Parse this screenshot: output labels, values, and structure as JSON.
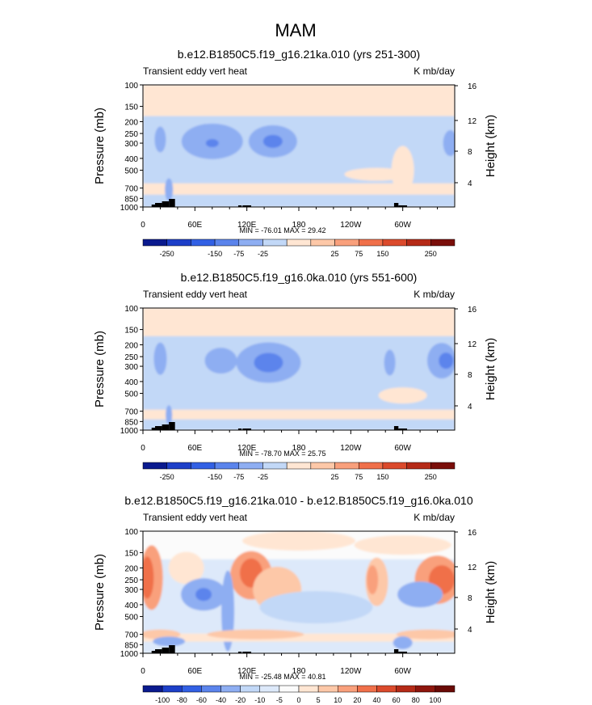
{
  "figure": {
    "title": "MAM"
  },
  "chart_data": [
    {
      "type": "heatmap",
      "title": "b.e12.B1850C5.f19_g16.21ka.010 (yrs 251-300)",
      "left_label": "Transient eddy vert heat",
      "right_label": "K mb/day",
      "ylabel": "Pressure (mb)",
      "ylabel_right": "Height (km)",
      "x_ticks": [
        "0",
        "60E",
        "120E",
        "180",
        "120W",
        "60W"
      ],
      "y_ticks": [
        "100",
        "150",
        "200",
        "250",
        "300",
        "400",
        "500",
        "700",
        "850",
        "1000"
      ],
      "height_ticks": [
        "16",
        "12",
        "8",
        "4"
      ],
      "stats": "MIN = -76.01  MAX =  29.42",
      "legend_labels": [
        "-250",
        "-150",
        "-75",
        "-25",
        "25",
        "75",
        "150",
        "250"
      ],
      "legend_colors": [
        "#0a1a8e",
        "#1d3fc8",
        "#3260e4",
        "#5b84ec",
        "#8eaef2",
        "#c2d8f7",
        "#ffe6d3",
        "#fdc8a8",
        "#f9a07c",
        "#f0704a",
        "#db4a2c",
        "#b52a17",
        "#7a0e0a"
      ]
    },
    {
      "type": "heatmap",
      "title": "b.e12.B1850C5.f19_g16.0ka.010 (yrs 551-600)",
      "left_label": "Transient eddy vert heat",
      "right_label": "K mb/day",
      "ylabel": "Pressure (mb)",
      "ylabel_right": "Height (km)",
      "x_ticks": [
        "0",
        "60E",
        "120E",
        "180",
        "120W",
        "60W"
      ],
      "y_ticks": [
        "100",
        "150",
        "200",
        "250",
        "300",
        "400",
        "500",
        "700",
        "850",
        "1000"
      ],
      "height_ticks": [
        "16",
        "12",
        "8",
        "4"
      ],
      "stats": "MIN = -78.70  MAX =  25.75",
      "legend_labels": [
        "-250",
        "-150",
        "-75",
        "-25",
        "25",
        "75",
        "150",
        "250"
      ],
      "legend_colors": [
        "#0a1a8e",
        "#1d3fc8",
        "#3260e4",
        "#5b84ec",
        "#8eaef2",
        "#c2d8f7",
        "#ffe6d3",
        "#fdc8a8",
        "#f9a07c",
        "#f0704a",
        "#db4a2c",
        "#b52a17",
        "#7a0e0a"
      ]
    },
    {
      "type": "heatmap",
      "title": "b.e12.B1850C5.f19_g16.21ka.010 - b.e12.B1850C5.f19_g16.0ka.010",
      "left_label": "Transient eddy vert heat",
      "right_label": "K mb/day",
      "ylabel": "Pressure (mb)",
      "ylabel_right": "Height (km)",
      "x_ticks": [
        "0",
        "60E",
        "120E",
        "180",
        "120W",
        "60W"
      ],
      "y_ticks": [
        "100",
        "150",
        "200",
        "250",
        "300",
        "400",
        "500",
        "700",
        "850",
        "1000"
      ],
      "height_ticks": [
        "16",
        "12",
        "8",
        "4"
      ],
      "stats": "MIN = -25.48  MAX =  40.81",
      "legend_labels": [
        "-100",
        "-80",
        "-60",
        "-40",
        "-20",
        "-10",
        "-5",
        "0",
        "5",
        "10",
        "20",
        "40",
        "60",
        "80",
        "100"
      ],
      "legend_colors": [
        "#0a1a8e",
        "#1d3fc8",
        "#3260e4",
        "#5b84ec",
        "#8eaef2",
        "#c2d8f7",
        "#dde9fa",
        "#fbfbfb",
        "#ffe6d3",
        "#fdc8a8",
        "#f9a07c",
        "#f0704a",
        "#db4a2c",
        "#b52a17",
        "#8e160d",
        "#6a0a06"
      ]
    }
  ]
}
